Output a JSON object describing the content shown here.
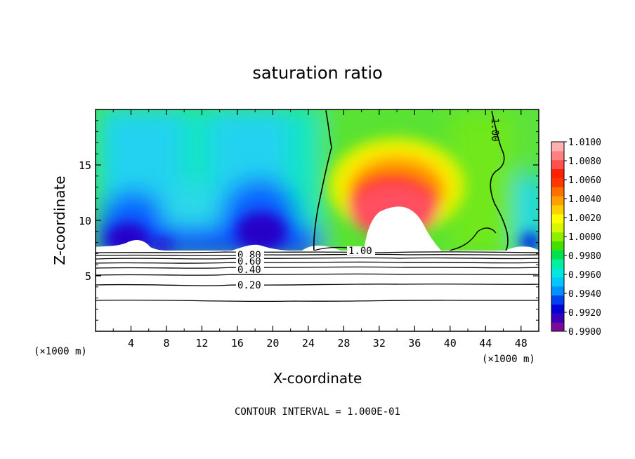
{
  "chart_data": {
    "type": "heatmap",
    "title": "saturation ratio",
    "xlabel": "X-coordinate",
    "ylabel": "Z-coordinate",
    "x_unit": "(×1000 m)",
    "x_unit_right": "(×1000 m)",
    "xlim": [
      0,
      50
    ],
    "ylim": [
      0,
      20
    ],
    "x_ticks": [
      "4",
      "8",
      "12",
      "16",
      "20",
      "24",
      "28",
      "32",
      "36",
      "40",
      "44",
      "48"
    ],
    "y_ticks": [
      "5",
      "10",
      "15"
    ],
    "colorbar": {
      "min": 0.99,
      "max": 1.01,
      "labels": [
        "1.0100",
        "1.0080",
        "1.0060",
        "1.0040",
        "1.0020",
        "1.0000",
        "0.9980",
        "0.9960",
        "0.9940",
        "0.9920",
        "0.9900"
      ],
      "colors": [
        "#7a0a9a",
        "#3a00b8",
        "#0000d8",
        "#0040f0",
        "#0090ff",
        "#00c8ff",
        "#00e8e0",
        "#00f0a0",
        "#00e050",
        "#40e000",
        "#90ee00",
        "#d8f800",
        "#ffff00",
        "#ffd000",
        "#ffa000",
        "#ff7000",
        "#ff3800",
        "#ff2000",
        "#ff5050",
        "#ff8080",
        "#ffb0b0"
      ]
    },
    "contour_labels": [
      "0.80",
      "0.60",
      "0.40",
      "0.20",
      "1.00",
      "1.00"
    ],
    "footer": "CONTOUR INTERVAL = 1.000E-01"
  }
}
